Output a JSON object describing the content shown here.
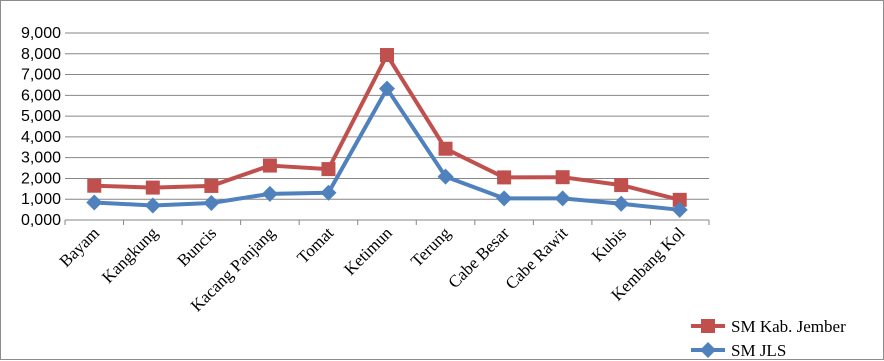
{
  "chart_data": {
    "type": "line",
    "title": "",
    "xlabel": "",
    "ylabel": "",
    "ylim": [
      0,
      9000
    ],
    "y_ticks": [
      "0,000",
      "1,000",
      "2,000",
      "3,000",
      "4,000",
      "5,000",
      "6,000",
      "7,000",
      "8,000",
      "9,000"
    ],
    "categories": [
      "Bayam",
      "Kangkung",
      "Buncis",
      "Kacang Panjang",
      "Tomat",
      "Ketimun",
      "Terung",
      "Cabe Besar",
      "Cabe Rawit",
      "Kubis",
      "Kembang Kol"
    ],
    "grid": true,
    "legend_position": "bottom-right",
    "series": [
      {
        "name": "SM Kab. Jember",
        "color": "#c0504d",
        "marker": "square",
        "values": [
          1650,
          1560,
          1640,
          2620,
          2450,
          7940,
          3430,
          2050,
          2060,
          1680,
          970
        ]
      },
      {
        "name": "SM JLS",
        "color": "#4f81bd",
        "marker": "diamond",
        "values": [
          840,
          700,
          820,
          1260,
          1310,
          6320,
          2090,
          1040,
          1040,
          780,
          490
        ]
      }
    ]
  }
}
